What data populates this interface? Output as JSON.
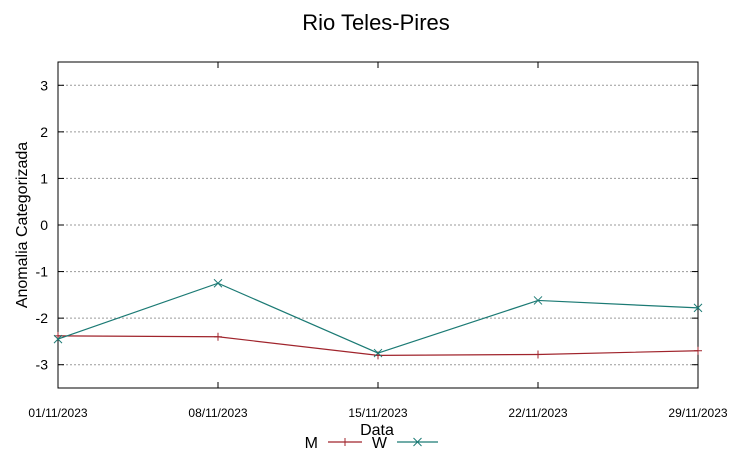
{
  "chart_data": {
    "type": "line",
    "title": "Rio Teles-Pires",
    "xlabel": "Data",
    "ylabel": "Anomalia Categorizada",
    "categories": [
      "01/11/2023",
      "08/11/2023",
      "15/11/2023",
      "22/11/2023",
      "29/11/2023"
    ],
    "ylim": [
      -3.5,
      3.5
    ],
    "yticks": [
      "3",
      "2",
      "1",
      "0",
      "-1",
      "-2",
      "-3"
    ],
    "grid": true,
    "legend_position": "bottom-center",
    "series": [
      {
        "name": "M",
        "color": "#a0242c",
        "marker": "plus",
        "values": [
          -2.38,
          -2.4,
          -2.8,
          -2.78,
          -2.7
        ]
      },
      {
        "name": "W",
        "color": "#1b7a74",
        "marker": "cross",
        "values": [
          -2.45,
          -1.25,
          -2.75,
          -1.62,
          -1.78
        ]
      }
    ]
  }
}
